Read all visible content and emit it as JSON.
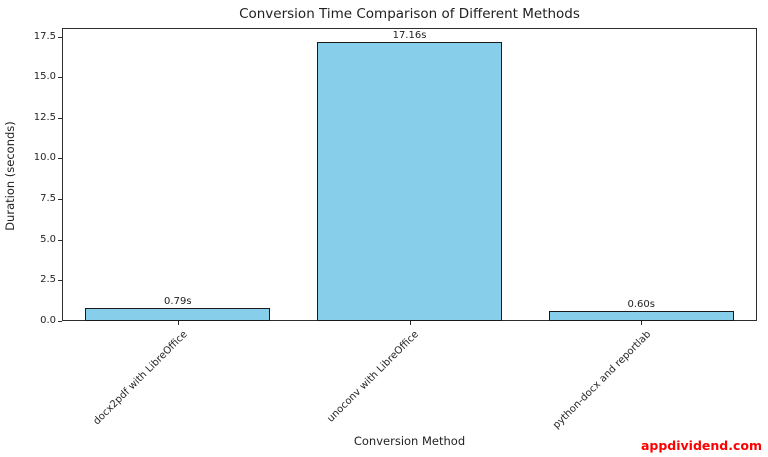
{
  "figure": {
    "watermark": "appdividend.com"
  },
  "colors": {
    "bar_fill": "#87CEEB",
    "bar_edge": "#1a1a1a",
    "gridline": "#d9d9d9",
    "axis": "#2e2e2e",
    "text": "#1f1f1f",
    "watermark": "#ff0000",
    "background": "#ffffff"
  },
  "chart_data": {
    "type": "bar",
    "title": "Conversion Time Comparison of Different Methods",
    "xlabel": "Conversion Method",
    "ylabel": "Duration (seconds)",
    "categories": [
      "docx2pdf with LibreOffice",
      "unoconv with LibreOffice",
      "python-docx and reportlab"
    ],
    "values": [
      0.79,
      17.16,
      0.6
    ],
    "bar_labels": [
      "0.79s",
      "17.16s",
      "0.60s"
    ],
    "ytick_values": [
      0,
      2.5,
      5,
      7.5,
      10,
      12.5,
      15,
      17.5
    ],
    "ytick_labels": [
      "0.0",
      "2.5",
      "5.0",
      "7.5",
      "10.0",
      "12.5",
      "15.0",
      "17.5"
    ],
    "ylim": [
      0,
      18.02
    ],
    "xtick_label_rotation_deg": 45,
    "grid": "horizontal-dashed",
    "legend": "none",
    "bar_color": "#87CEEB",
    "bar_edge_color": "#1a1a1a",
    "watermark": "appdividend.com"
  }
}
